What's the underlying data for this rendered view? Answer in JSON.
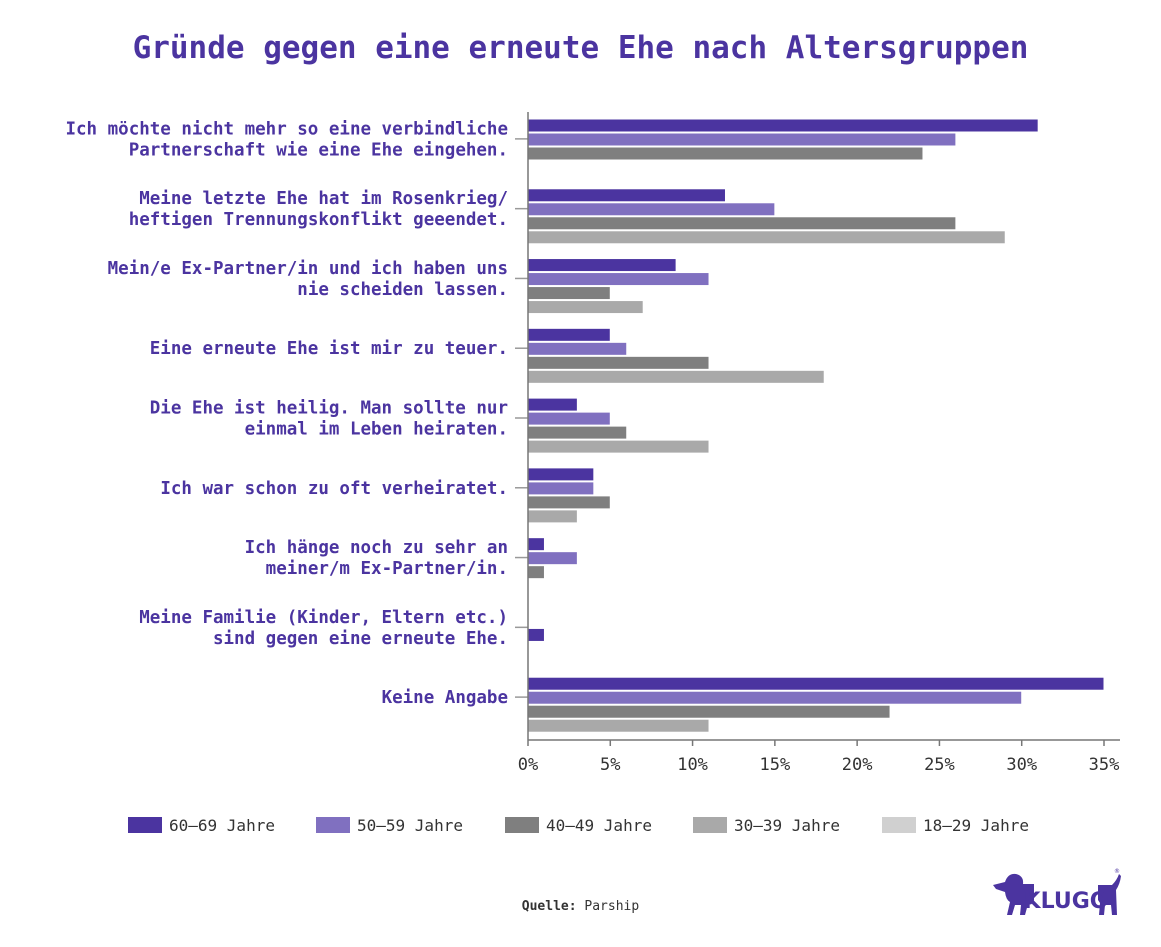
{
  "chart_data": {
    "type": "bar",
    "orientation": "horizontal",
    "title": "Gründe gegen eine erneute Ehe nach Altersgruppen",
    "categories": [
      [
        "Ich möchte nicht mehr so eine verbindliche",
        "Partnerschaft wie eine Ehe eingehen."
      ],
      [
        "Meine letzte Ehe hat im Rosenkrieg/",
        "heftigen Trennungskonflikt geeendet."
      ],
      [
        "Mein/e Ex-Partner/in und ich haben uns",
        "nie scheiden lassen."
      ],
      [
        "Eine erneute Ehe ist mir zu teuer."
      ],
      [
        "Die Ehe ist heilig. Man sollte nur",
        "einmal im Leben heiraten."
      ],
      [
        "Ich war schon zu oft verheiratet."
      ],
      [
        "Ich hänge noch zu sehr an",
        "meiner/m Ex-Partner/in."
      ],
      [
        "Meine Familie (Kinder, Eltern etc.)",
        "sind gegen eine erneute Ehe."
      ],
      [
        "Keine Angabe"
      ]
    ],
    "series": [
      {
        "name": "60–69 Jahre",
        "color": "#4b34a0",
        "values": [
          31,
          12,
          9,
          5,
          3,
          4,
          1,
          1,
          35
        ]
      },
      {
        "name": "50–59 Jahre",
        "color": "#8070c0",
        "values": [
          26,
          15,
          11,
          6,
          5,
          4,
          3,
          0,
          30
        ]
      },
      {
        "name": "40–49 Jahre",
        "color": "#7f7f7f",
        "values": [
          24,
          26,
          5,
          11,
          6,
          5,
          1,
          0,
          22
        ]
      },
      {
        "name": "30–39 Jahre",
        "color": "#a9a9a9",
        "values": [
          0,
          29,
          7,
          18,
          11,
          3,
          0,
          0,
          11
        ]
      },
      {
        "name": "18–29 Jahre",
        "color": "#d0d0d0",
        "values": [
          0,
          0,
          0,
          0,
          0,
          0,
          0,
          0,
          0
        ]
      }
    ],
    "xlim": [
      0,
      35
    ],
    "xticks": [
      "0%",
      "5%",
      "10%",
      "15%",
      "20%",
      "25%",
      "30%",
      "35%"
    ],
    "legend_position": "bottom",
    "grid": false
  },
  "source": {
    "label": "Quelle:",
    "value": "Parship"
  },
  "logo": {
    "text": "KLUGO",
    "color": "#4b34a0"
  }
}
